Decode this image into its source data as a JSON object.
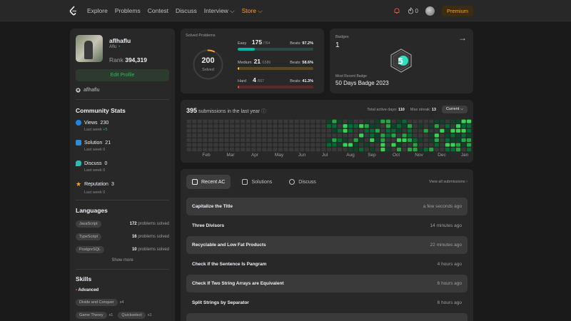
{
  "nav": {
    "links": [
      "Explore",
      "Problems",
      "Contest",
      "Discuss",
      "Interview ⌵",
      "Store ⌵"
    ],
    "notif_count": "0",
    "premium_label": "Premium",
    "accent": "#ffa116"
  },
  "profile": {
    "username": "aflhaflu",
    "handle": "Aflu",
    "rank_label": "Rank",
    "rank_value": "394,319",
    "edit_label": "Edit Profile",
    "github": "aflhaflu"
  },
  "community": {
    "title": "Community Stats",
    "items": [
      {
        "label": "Views",
        "value": "230",
        "last_week_label": "Last week",
        "last_week": "+5",
        "icon": "eye-icon",
        "color": "#1c86e4"
      },
      {
        "label": "Solution",
        "value": "21",
        "last_week_label": "Last week",
        "last_week": "0",
        "icon": "solution-icon",
        "color": "#2e8bd8"
      },
      {
        "label": "Discuss",
        "value": "0",
        "last_week_label": "Last week",
        "last_week": "0",
        "icon": "discuss-icon",
        "color": "#2cbbb5"
      },
      {
        "label": "Reputation",
        "value": "3",
        "last_week_label": "Last week",
        "last_week": "0",
        "icon": "star-icon",
        "color": "#ffa116"
      }
    ]
  },
  "languages": {
    "title": "Languages",
    "items": [
      {
        "name": "JavaScript",
        "count": "172",
        "suffix": "problems solved"
      },
      {
        "name": "TypeScript",
        "count": "16",
        "suffix": "problems solved"
      },
      {
        "name": "PostgreSQL",
        "count": "10",
        "suffix": "problems solved"
      }
    ],
    "show_more": "Show more"
  },
  "skills": {
    "title": "Skills",
    "level": "Advanced",
    "items": [
      {
        "name": "Divide and Conquer",
        "count": "x4"
      },
      {
        "name": "Game Theory",
        "count": "x1"
      },
      {
        "name": "Quickselect",
        "count": "x1"
      }
    ]
  },
  "solved": {
    "title": "Solved Problems",
    "total": "200",
    "total_label": "Solved",
    "difficulties": [
      {
        "name": "Easy",
        "count": "175",
        "total": "/764",
        "beats_label": "Beats:",
        "beats": "97.2%",
        "fill": 0.229,
        "color": "#00b8a3",
        "track": "#2a4a45"
      },
      {
        "name": "Medium",
        "count": "21",
        "total": "/1586",
        "beats_label": "Beats:",
        "beats": "58.6%",
        "fill": 0.013,
        "color": "#ffc01e",
        "track": "#5a4a22"
      },
      {
        "name": "Hard",
        "count": "4",
        "total": "/667",
        "beats_label": "Beats:",
        "beats": "41.3%",
        "fill": 0.006,
        "color": "#ef4743",
        "track": "#5a2a2a"
      }
    ]
  },
  "badges": {
    "title": "Badges",
    "count": "1",
    "recent_label": "Most Recent Badge",
    "recent_name": "50 Days Badge 2023"
  },
  "heatmap": {
    "count": "395",
    "label": "submissions in the last year",
    "active_days_label": "Total active days:",
    "active_days": "110",
    "streak_label": "Max streak:",
    "streak": "13",
    "select": "Current ⌵",
    "months": [
      "Feb",
      "Mar",
      "Apr",
      "May",
      "Jun",
      "Jul",
      "Aug",
      "Sep",
      "Oct",
      "Nov",
      "Dec",
      "Jan"
    ]
  },
  "submissions": {
    "tabs": [
      "Recent AC",
      "Solutions",
      "Discuss"
    ],
    "view_all": "View all submissions ›",
    "rows": [
      {
        "title": "Capitalize the Title",
        "time": "a few seconds ago"
      },
      {
        "title": "Three Divisors",
        "time": "14 minutes ago"
      },
      {
        "title": "Recyclable and Low Fat Products",
        "time": "22 minutes ago"
      },
      {
        "title": "Check if the Sentence Is Pangram",
        "time": "4 hours ago"
      },
      {
        "title": "Check If Two String Arrays are Equivalent",
        "time": "6 hours ago"
      },
      {
        "title": "Split Strings by Separator",
        "time": "6 hours ago"
      }
    ]
  }
}
